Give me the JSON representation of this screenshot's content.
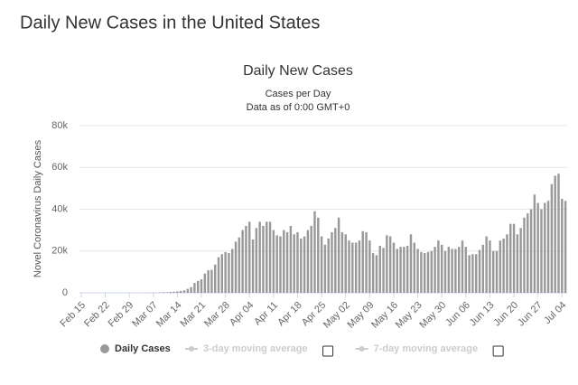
{
  "page_title": "Daily New Cases in the United States",
  "chart_data": {
    "type": "bar",
    "title": "Daily New Cases",
    "subtitle": "Cases per Day",
    "note": "Data as of 0:00 GMT+0",
    "y_label": "Novel Coronavirus Daily Cases",
    "categories": [
      "Feb 15",
      null,
      null,
      null,
      null,
      null,
      null,
      "Feb 22",
      null,
      null,
      null,
      null,
      null,
      null,
      "Feb 29",
      null,
      null,
      null,
      null,
      null,
      null,
      "Mar 07",
      null,
      null,
      null,
      null,
      null,
      null,
      "Mar 14",
      null,
      null,
      null,
      null,
      null,
      null,
      "Mar 21",
      null,
      null,
      null,
      null,
      null,
      null,
      "Mar 28",
      null,
      null,
      null,
      null,
      null,
      null,
      "Apr 04",
      null,
      null,
      null,
      null,
      null,
      null,
      "Apr 11",
      null,
      null,
      null,
      null,
      null,
      null,
      "Apr 18",
      null,
      null,
      null,
      null,
      null,
      null,
      "Apr 25",
      null,
      null,
      null,
      null,
      null,
      null,
      "May 02",
      null,
      null,
      null,
      null,
      null,
      null,
      "May 09",
      null,
      null,
      null,
      null,
      null,
      null,
      "May 16",
      null,
      null,
      null,
      null,
      null,
      null,
      "May 23",
      null,
      null,
      null,
      null,
      null,
      null,
      "May 30",
      null,
      null,
      null,
      null,
      null,
      null,
      "Jun 06",
      null,
      null,
      null,
      null,
      null,
      null,
      "Jun 13",
      null,
      null,
      null,
      null,
      null,
      null,
      "Jun 20",
      null,
      null,
      null,
      null,
      null,
      null,
      "Jun 27",
      null,
      null,
      null,
      null,
      null,
      null,
      "Jul 04",
      null
    ],
    "series": [
      {
        "name": "Daily Cases",
        "color": "#999999",
        "values": [
          0,
          0,
          0,
          0,
          0,
          0,
          0,
          0,
          0,
          0,
          0,
          0,
          0,
          0,
          0,
          0,
          20,
          30,
          40,
          60,
          90,
          100,
          120,
          170,
          290,
          270,
          430,
          540,
          700,
          900,
          1200,
          1900,
          2700,
          4700,
          5700,
          6500,
          9200,
          10800,
          11000,
          13500,
          17000,
          18500,
          19500,
          19000,
          21000,
          24500,
          26500,
          30000,
          32000,
          34000,
          25500,
          31000,
          34000,
          32000,
          34000,
          34000,
          30000,
          27500,
          27000,
          30000,
          29000,
          32000,
          28000,
          29000,
          26000,
          27000,
          30000,
          32000,
          39000,
          36000,
          27000,
          23000,
          26000,
          29000,
          31000,
          36000,
          29000,
          28000,
          25000,
          24000,
          24000,
          25000,
          29500,
          29000,
          25000,
          19000,
          18000,
          22500,
          21500,
          27500,
          27000,
          24000,
          21000,
          22000,
          22000,
          22500,
          28000,
          24000,
          21000,
          19500,
          19000,
          19500,
          20000,
          22000,
          25000,
          23000,
          20000,
          22000,
          21000,
          21000,
          22000,
          25000,
          22000,
          18000,
          18500,
          18500,
          20500,
          23000,
          27000,
          25000,
          20000,
          20000,
          25000,
          26000,
          28000,
          33000,
          33000,
          28000,
          31000,
          36000,
          38000,
          40000,
          47000,
          43000,
          40000,
          43000,
          44000,
          52000,
          56000,
          57000,
          45000,
          44000
        ]
      }
    ],
    "inactive_legend": [
      "3-day moving average",
      "7-day moving average"
    ],
    "ylim": [
      0,
      80000
    ],
    "yticks": [
      0,
      {
        "value": 20000,
        "label": "20k"
      },
      {
        "value": 40000,
        "label": "40k"
      },
      {
        "value": 60000,
        "label": "60k"
      },
      {
        "value": 80000,
        "label": "80k"
      }
    ],
    "grid": true
  }
}
